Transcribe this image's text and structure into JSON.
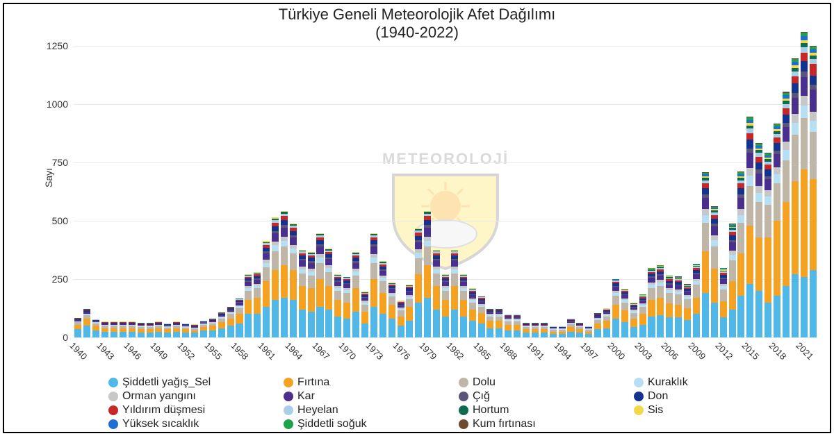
{
  "chart": {
    "type": "stacked-bar",
    "title_line1": "Türkiye Geneli Meteorolojik Afet Dağılımı",
    "title_line2": "(1940-2022)",
    "title_fontsize": 22,
    "ylabel": "Sayı",
    "label_fontsize": 14,
    "background_color": "#ffffff",
    "grid_color": "#e8e8e8",
    "frame_color": "#000000",
    "ylim": [
      0,
      1250
    ],
    "yticks": [
      0,
      250,
      500,
      750,
      1000,
      1250
    ],
    "xtick_step": 3,
    "bar_width_ratio": 0.78,
    "watermark_text": "METEOROLOJİ",
    "watermark_colors": {
      "shield_fill": "#ffe34d",
      "shield_border": "#7a7a7a",
      "sun": "#f7a400",
      "cloud": "#e8e8e8"
    },
    "years": [
      1940,
      1941,
      1942,
      1943,
      1944,
      1945,
      1946,
      1947,
      1948,
      1949,
      1950,
      1951,
      1952,
      1953,
      1954,
      1955,
      1956,
      1957,
      1958,
      1959,
      1960,
      1961,
      1962,
      1963,
      1964,
      1965,
      1966,
      1967,
      1968,
      1969,
      1970,
      1971,
      1972,
      1973,
      1974,
      1975,
      1976,
      1977,
      1978,
      1979,
      1980,
      1981,
      1982,
      1983,
      1984,
      1985,
      1986,
      1987,
      1988,
      1989,
      1990,
      1991,
      1992,
      1993,
      1994,
      1995,
      1996,
      1997,
      1998,
      1999,
      2000,
      2001,
      2002,
      2003,
      2004,
      2005,
      2006,
      2007,
      2008,
      2009,
      2010,
      2011,
      2012,
      2013,
      2014,
      2015,
      2016,
      2017,
      2018,
      2019,
      2020,
      2021,
      2022
    ],
    "series_order": [
      "siddetli_yagis_sel",
      "firtina",
      "dolu",
      "kuraklik",
      "orman_yangini",
      "kar",
      "cig",
      "don",
      "yildirim",
      "heyelan",
      "hortum",
      "sis",
      "yuksek_sicaklik",
      "siddetli_soguk",
      "kum_firtinasi"
    ],
    "series": {
      "siddetli_yagis_sel": {
        "label": "Şiddetli yağış_Sel",
        "color": "#4fb8e8"
      },
      "firtina": {
        "label": "Fırtına",
        "color": "#f5a122"
      },
      "dolu": {
        "label": "Dolu",
        "color": "#bfb6a8"
      },
      "kuraklik": {
        "label": "Kuraklık",
        "color": "#b7dff4"
      },
      "orman_yangini": {
        "label": "Orman yangını",
        "color": "#c7c7c7"
      },
      "kar": {
        "label": "Kar",
        "color": "#4a2f8f"
      },
      "cig": {
        "label": "Çığ",
        "color": "#5a547a"
      },
      "don": {
        "label": "Don",
        "color": "#12338f"
      },
      "yildirim": {
        "label": "Yıldırım düşmesi",
        "color": "#c62828"
      },
      "heyelan": {
        "label": "Heyelan",
        "color": "#a8cfe6"
      },
      "hortum": {
        "label": "Hortum",
        "color": "#0e6b4f"
      },
      "sis": {
        "label": "Sis",
        "color": "#f2d94a"
      },
      "yuksek_sicaklik": {
        "label": "Yüksek sıcaklık",
        "color": "#1f6ed4"
      },
      "siddetli_soguk": {
        "label": "Şiddetli soğuk",
        "color": "#1fa34a"
      },
      "kum_firtinasi": {
        "label": "Kum fırtınası",
        "color": "#6b4a2f"
      }
    },
    "data": {
      "siddetli_yagis_sel": [
        35,
        50,
        30,
        25,
        25,
        25,
        25,
        20,
        20,
        25,
        20,
        25,
        20,
        20,
        30,
        30,
        40,
        50,
        60,
        100,
        100,
        130,
        160,
        170,
        160,
        120,
        110,
        130,
        120,
        90,
        80,
        110,
        60,
        130,
        100,
        80,
        50,
        70,
        150,
        170,
        120,
        90,
        120,
        90,
        70,
        60,
        40,
        40,
        30,
        30,
        20,
        20,
        20,
        15,
        15,
        25,
        20,
        15,
        35,
        40,
        80,
        65,
        45,
        55,
        90,
        95,
        85,
        85,
        75,
        100,
        190,
        150,
        85,
        120,
        180,
        230,
        200,
        150,
        180,
        220,
        270,
        260,
        290
      ],
      "firtina": [
        20,
        30,
        20,
        15,
        15,
        15,
        15,
        15,
        15,
        15,
        15,
        15,
        15,
        10,
        15,
        20,
        25,
        30,
        40,
        60,
        70,
        110,
        130,
        140,
        130,
        100,
        100,
        120,
        100,
        70,
        70,
        100,
        50,
        120,
        90,
        60,
        40,
        60,
        120,
        140,
        100,
        70,
        100,
        70,
        50,
        45,
        30,
        30,
        25,
        25,
        15,
        15,
        15,
        10,
        10,
        20,
        15,
        10,
        25,
        30,
        60,
        50,
        35,
        45,
        70,
        75,
        60,
        55,
        50,
        70,
        180,
        145,
        70,
        120,
        180,
        250,
        230,
        280,
        320,
        360,
        400,
        460,
        390
      ],
      "dolu": [
        10,
        15,
        10,
        10,
        10,
        10,
        10,
        10,
        10,
        10,
        8,
        10,
        8,
        8,
        10,
        10,
        15,
        20,
        25,
        40,
        40,
        60,
        80,
        80,
        70,
        55,
        55,
        70,
        60,
        40,
        40,
        55,
        30,
        70,
        50,
        35,
        25,
        35,
        70,
        80,
        55,
        40,
        55,
        40,
        30,
        25,
        20,
        20,
        15,
        15,
        10,
        10,
        10,
        8,
        8,
        12,
        10,
        8,
        15,
        20,
        40,
        35,
        25,
        30,
        50,
        50,
        45,
        45,
        40,
        55,
        120,
        95,
        50,
        90,
        130,
        170,
        150,
        140,
        160,
        180,
        200,
        220,
        200
      ],
      "kuraklik": [
        3,
        4,
        3,
        3,
        3,
        3,
        3,
        3,
        3,
        3,
        3,
        3,
        3,
        3,
        3,
        4,
        5,
        5,
        8,
        12,
        12,
        20,
        25,
        25,
        22,
        18,
        18,
        22,
        18,
        12,
        12,
        18,
        10,
        22,
        15,
        10,
        8,
        10,
        22,
        25,
        18,
        12,
        18,
        12,
        10,
        8,
        6,
        6,
        5,
        5,
        3,
        3,
        3,
        3,
        3,
        4,
        3,
        3,
        5,
        6,
        12,
        10,
        8,
        9,
        15,
        16,
        12,
        12,
        10,
        16,
        35,
        28,
        14,
        25,
        35,
        45,
        40,
        35,
        40,
        45,
        50,
        55,
        50
      ],
      "orman_yangini": [
        2,
        3,
        2,
        2,
        2,
        2,
        2,
        2,
        2,
        2,
        2,
        2,
        2,
        2,
        2,
        3,
        3,
        4,
        5,
        8,
        8,
        13,
        17,
        18,
        15,
        12,
        12,
        15,
        12,
        8,
        8,
        12,
        7,
        15,
        10,
        7,
        5,
        7,
        15,
        18,
        12,
        8,
        12,
        8,
        7,
        5,
        4,
        4,
        4,
        4,
        2,
        2,
        2,
        2,
        2,
        3,
        2,
        2,
        4,
        4,
        8,
        7,
        5,
        6,
        10,
        10,
        8,
        8,
        7,
        10,
        25,
        20,
        10,
        17,
        25,
        32,
        28,
        25,
        30,
        34,
        38,
        42,
        38
      ],
      "kar": [
        5,
        7,
        5,
        4,
        4,
        4,
        4,
        4,
        4,
        4,
        4,
        4,
        4,
        4,
        4,
        5,
        6,
        8,
        10,
        18,
        18,
        28,
        35,
        38,
        32,
        25,
        25,
        32,
        25,
        18,
        18,
        25,
        13,
        32,
        22,
        15,
        10,
        15,
        32,
        38,
        25,
        18,
        25,
        18,
        15,
        12,
        8,
        8,
        7,
        7,
        4,
        4,
        4,
        3,
        3,
        6,
        4,
        3,
        7,
        8,
        16,
        14,
        10,
        12,
        20,
        20,
        17,
        17,
        14,
        20,
        48,
        38,
        20,
        35,
        48,
        65,
        55,
        48,
        55,
        62,
        70,
        80,
        95
      ],
      "cig": [
        1,
        2,
        1,
        1,
        1,
        1,
        1,
        1,
        1,
        1,
        1,
        1,
        1,
        1,
        1,
        1,
        2,
        2,
        3,
        5,
        5,
        8,
        10,
        11,
        9,
        7,
        7,
        9,
        7,
        5,
        5,
        7,
        4,
        9,
        6,
        4,
        3,
        4,
        9,
        11,
        7,
        5,
        7,
        5,
        4,
        3,
        2,
        2,
        2,
        2,
        1,
        1,
        1,
        1,
        1,
        2,
        1,
        1,
        2,
        2,
        5,
        4,
        3,
        4,
        6,
        6,
        5,
        5,
        4,
        6,
        14,
        11,
        6,
        10,
        14,
        18,
        16,
        14,
        16,
        18,
        20,
        22,
        20
      ],
      "don": [
        3,
        4,
        3,
        3,
        3,
        3,
        3,
        3,
        3,
        3,
        3,
        3,
        3,
        3,
        3,
        3,
        4,
        5,
        6,
        10,
        10,
        16,
        20,
        22,
        18,
        14,
        14,
        18,
        14,
        10,
        10,
        14,
        8,
        18,
        12,
        9,
        6,
        9,
        18,
        22,
        14,
        10,
        14,
        10,
        9,
        7,
        5,
        5,
        4,
        4,
        3,
        3,
        3,
        2,
        2,
        3,
        3,
        2,
        4,
        5,
        10,
        8,
        6,
        7,
        12,
        12,
        10,
        10,
        8,
        12,
        28,
        22,
        12,
        20,
        28,
        38,
        32,
        28,
        32,
        36,
        40,
        46,
        40
      ],
      "yildirim": [
        2,
        3,
        2,
        2,
        2,
        2,
        2,
        2,
        2,
        2,
        2,
        2,
        2,
        2,
        2,
        2,
        3,
        3,
        4,
        7,
        7,
        11,
        15,
        16,
        13,
        10,
        10,
        13,
        10,
        7,
        7,
        10,
        5,
        13,
        9,
        6,
        4,
        6,
        13,
        16,
        10,
        7,
        10,
        7,
        6,
        5,
        3,
        3,
        3,
        3,
        2,
        2,
        2,
        2,
        2,
        2,
        2,
        2,
        3,
        4,
        7,
        6,
        4,
        5,
        8,
        9,
        7,
        7,
        6,
        9,
        20,
        16,
        9,
        15,
        20,
        28,
        24,
        20,
        24,
        28,
        32,
        36,
        50
      ],
      "heyelan": [
        1,
        2,
        1,
        1,
        1,
        1,
        1,
        1,
        1,
        1,
        1,
        1,
        1,
        1,
        1,
        1,
        2,
        2,
        3,
        5,
        5,
        8,
        10,
        11,
        9,
        7,
        7,
        9,
        7,
        5,
        5,
        7,
        4,
        9,
        6,
        4,
        3,
        4,
        9,
        11,
        7,
        5,
        7,
        5,
        4,
        3,
        2,
        2,
        2,
        2,
        1,
        1,
        1,
        1,
        1,
        2,
        1,
        1,
        2,
        2,
        5,
        4,
        3,
        4,
        6,
        6,
        5,
        5,
        4,
        6,
        14,
        11,
        6,
        10,
        14,
        19,
        16,
        14,
        16,
        18,
        20,
        23,
        20
      ],
      "hortum": [
        1,
        1,
        1,
        1,
        1,
        1,
        1,
        1,
        1,
        1,
        1,
        1,
        1,
        1,
        1,
        1,
        1,
        1,
        2,
        3,
        3,
        5,
        7,
        7,
        6,
        5,
        5,
        6,
        5,
        3,
        3,
        5,
        3,
        6,
        4,
        3,
        2,
        3,
        6,
        7,
        5,
        3,
        5,
        3,
        3,
        2,
        2,
        2,
        1,
        1,
        1,
        1,
        1,
        1,
        1,
        1,
        1,
        1,
        1,
        2,
        3,
        3,
        2,
        3,
        4,
        4,
        4,
        4,
        3,
        4,
        10,
        8,
        5,
        7,
        10,
        14,
        12,
        10,
        12,
        14,
        16,
        18,
        16
      ],
      "sis": [
        1,
        1,
        1,
        1,
        1,
        1,
        1,
        1,
        1,
        1,
        1,
        1,
        1,
        1,
        1,
        1,
        1,
        1,
        1,
        2,
        2,
        4,
        5,
        5,
        4,
        3,
        3,
        4,
        3,
        2,
        2,
        3,
        2,
        4,
        3,
        2,
        1,
        2,
        4,
        5,
        3,
        2,
        3,
        2,
        2,
        2,
        1,
        1,
        1,
        1,
        1,
        1,
        1,
        1,
        1,
        1,
        1,
        1,
        1,
        1,
        2,
        2,
        2,
        2,
        3,
        3,
        3,
        3,
        2,
        3,
        7,
        6,
        4,
        5,
        7,
        10,
        8,
        7,
        8,
        9,
        10,
        12,
        10
      ],
      "yuksek_sicaklik": [
        0,
        0,
        0,
        0,
        0,
        0,
        0,
        0,
        0,
        0,
        0,
        0,
        0,
        0,
        0,
        0,
        0,
        0,
        0,
        0,
        0,
        0,
        0,
        0,
        0,
        0,
        0,
        0,
        0,
        0,
        0,
        0,
        0,
        0,
        0,
        0,
        0,
        0,
        0,
        0,
        0,
        0,
        0,
        0,
        0,
        0,
        0,
        0,
        0,
        0,
        0,
        0,
        0,
        0,
        0,
        0,
        0,
        0,
        0,
        0,
        1,
        1,
        1,
        1,
        2,
        2,
        2,
        2,
        2,
        3,
        8,
        6,
        4,
        6,
        10,
        14,
        12,
        10,
        12,
        14,
        16,
        18,
        16
      ],
      "siddetli_soguk": [
        0,
        0,
        0,
        0,
        0,
        0,
        0,
        0,
        0,
        0,
        0,
        0,
        0,
        0,
        0,
        0,
        0,
        0,
        0,
        0,
        0,
        0,
        0,
        0,
        0,
        0,
        0,
        0,
        0,
        0,
        0,
        0,
        0,
        0,
        0,
        0,
        0,
        0,
        0,
        0,
        0,
        0,
        0,
        0,
        0,
        0,
        0,
        0,
        0,
        0,
        0,
        0,
        0,
        0,
        0,
        0,
        0,
        0,
        0,
        0,
        1,
        1,
        1,
        1,
        2,
        2,
        2,
        2,
        2,
        2,
        6,
        5,
        3,
        5,
        8,
        11,
        9,
        8,
        9,
        11,
        12,
        14,
        12
      ],
      "kum_firtinasi": [
        0,
        0,
        0,
        0,
        0,
        0,
        0,
        0,
        0,
        0,
        0,
        0,
        0,
        0,
        0,
        0,
        0,
        0,
        0,
        0,
        0,
        0,
        0,
        0,
        0,
        0,
        0,
        0,
        0,
        0,
        0,
        0,
        0,
        0,
        0,
        0,
        0,
        0,
        0,
        0,
        0,
        0,
        0,
        0,
        0,
        0,
        0,
        0,
        0,
        0,
        0,
        0,
        0,
        0,
        0,
        0,
        0,
        0,
        0,
        0,
        0,
        0,
        0,
        0,
        1,
        1,
        1,
        1,
        1,
        1,
        3,
        2,
        1,
        2,
        3,
        4,
        3,
        3,
        3,
        4,
        4,
        5,
        4
      ]
    }
  }
}
